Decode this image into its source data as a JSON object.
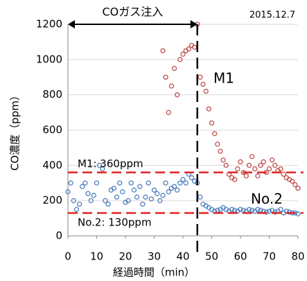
{
  "chart_data": {
    "type": "scatter",
    "date": "2015.12.7",
    "xlabel": "経過時間（min）",
    "ylabel": "CO濃度（ppm）",
    "x": [
      0,
      1,
      2,
      3,
      4,
      5,
      6,
      7,
      8,
      9,
      10,
      11,
      12,
      13,
      14,
      15,
      16,
      17,
      18,
      19,
      20,
      21,
      22,
      23,
      24,
      25,
      26,
      27,
      28,
      29,
      30,
      31,
      32,
      33,
      34,
      35,
      36,
      37,
      38,
      39,
      40,
      41,
      42,
      43,
      44,
      45,
      46,
      47,
      48,
      49,
      50,
      51,
      52,
      53,
      54,
      55,
      56,
      57,
      58,
      59,
      60,
      61,
      62,
      63,
      64,
      65,
      66,
      67,
      68,
      69,
      70,
      71,
      72,
      73,
      74,
      75,
      76,
      77,
      78,
      79,
      80
    ],
    "series": [
      {
        "name": "M1",
        "color": "#c0504d",
        "values": [
          null,
          null,
          null,
          null,
          null,
          null,
          null,
          null,
          null,
          null,
          null,
          null,
          null,
          null,
          null,
          null,
          null,
          null,
          null,
          null,
          null,
          null,
          null,
          null,
          null,
          null,
          null,
          null,
          null,
          null,
          null,
          null,
          null,
          1050,
          900,
          700,
          850,
          950,
          800,
          1000,
          1030,
          1050,
          1060,
          1080,
          1070,
          1200,
          900,
          860,
          820,
          720,
          640,
          580,
          520,
          480,
          430,
          400,
          350,
          330,
          320,
          380,
          420,
          360,
          340,
          400,
          450,
          380,
          340,
          400,
          420,
          360,
          380,
          430,
          400,
          370,
          380,
          350,
          330,
          320,
          310,
          290,
          270
        ]
      },
      {
        "name": "No.2",
        "color": "#4f81bd",
        "values": [
          250,
          300,
          200,
          150,
          180,
          280,
          300,
          240,
          200,
          230,
          300,
          400,
          380,
          200,
          180,
          260,
          270,
          220,
          300,
          250,
          190,
          200,
          300,
          260,
          220,
          280,
          180,
          220,
          300,
          210,
          260,
          240,
          200,
          230,
          300,
          250,
          270,
          280,
          260,
          300,
          320,
          300,
          350,
          330,
          310,
          300,
          220,
          180,
          170,
          160,
          150,
          140,
          145,
          150,
          160,
          150,
          140,
          150,
          145,
          140,
          150,
          145,
          140,
          150,
          145,
          140,
          150,
          145,
          140,
          135,
          140,
          145,
          135,
          140,
          150,
          130,
          140,
          135,
          130,
          130,
          125
        ]
      }
    ],
    "reference_lines": [
      {
        "value": 360,
        "label": "M1: 360ppm"
      },
      {
        "value": 130,
        "label": "No.2: 130ppm"
      }
    ],
    "injection": {
      "label": "COガス注入",
      "start": 0,
      "end": 45
    },
    "xlim": [
      0,
      80
    ],
    "xticks": [
      0,
      10,
      20,
      30,
      40,
      50,
      60,
      70,
      80
    ],
    "ylim": [
      0,
      1200
    ],
    "yticks": [
      0,
      200,
      400,
      600,
      800,
      1000,
      1200
    ],
    "grid": true
  }
}
